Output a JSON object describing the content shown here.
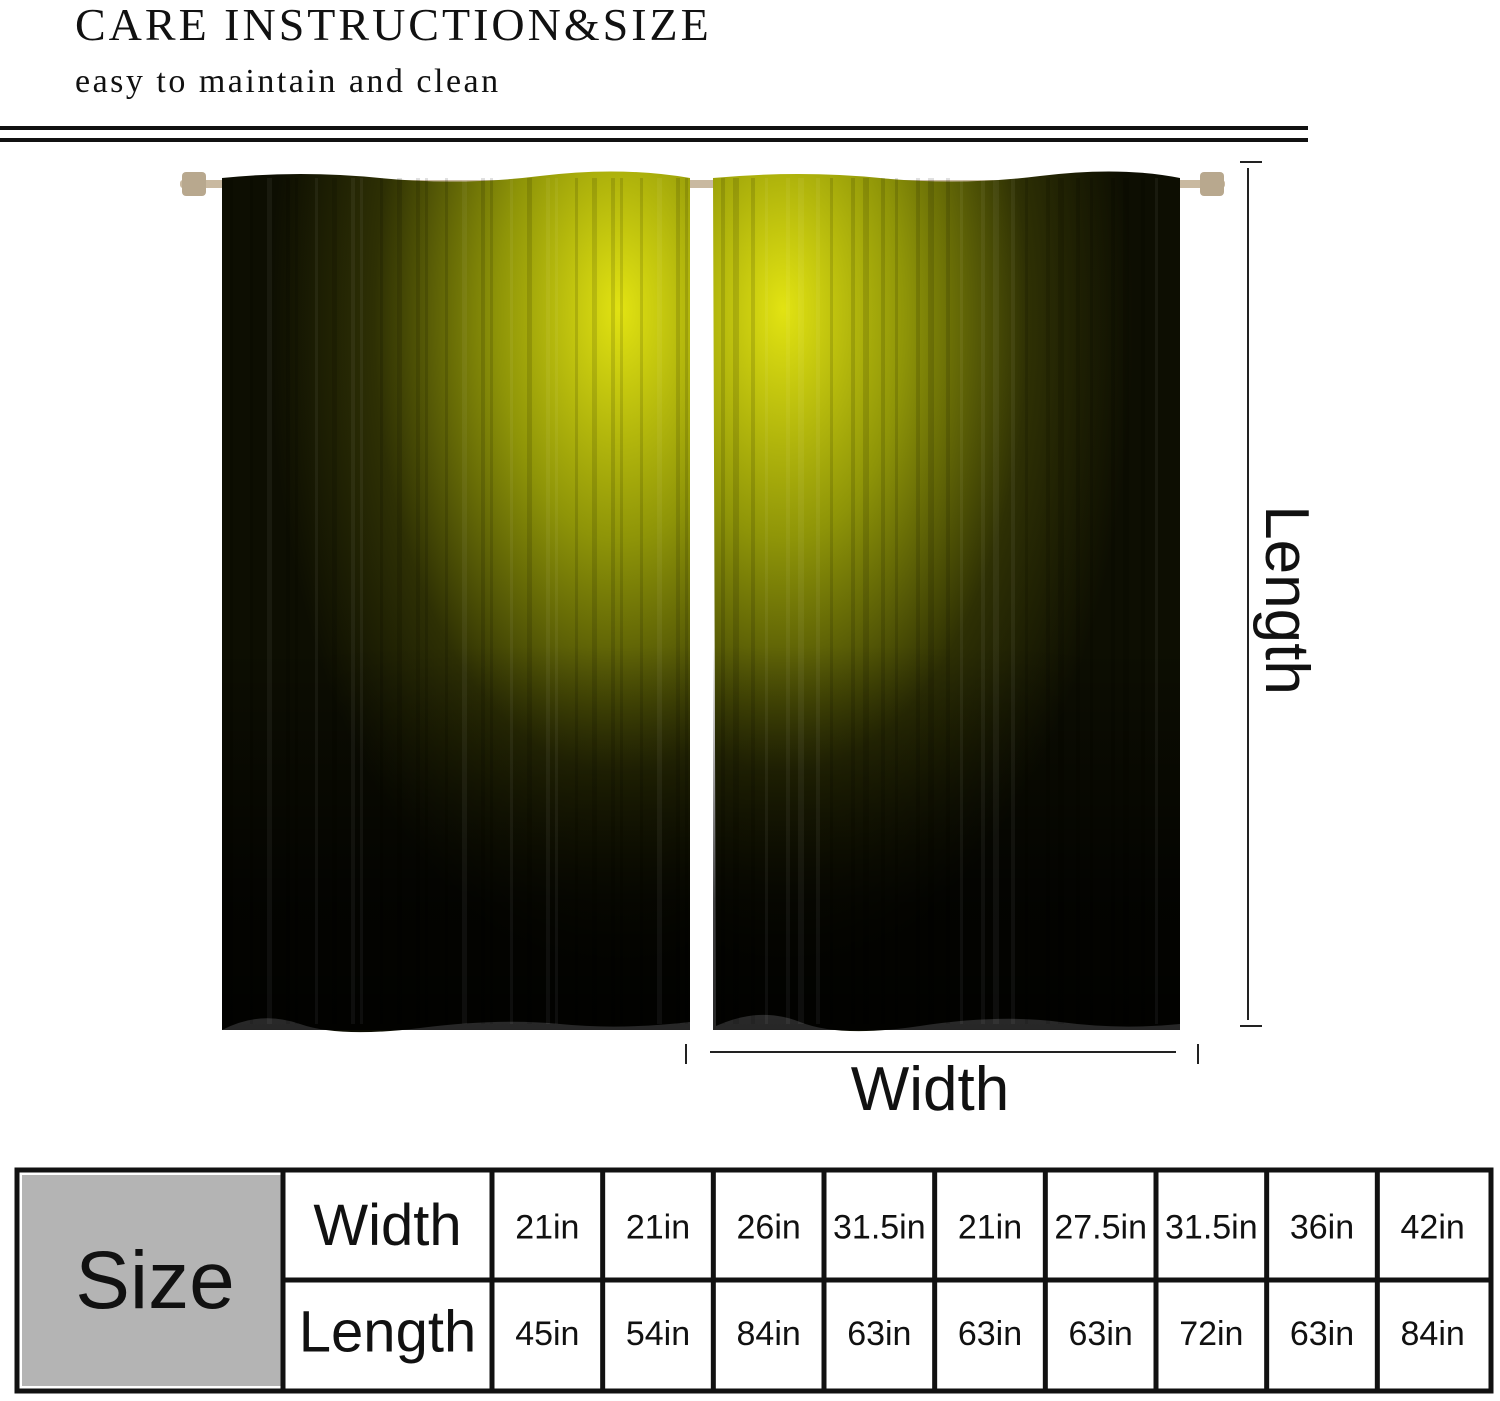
{
  "header": {
    "title": "CARE INSTRUCTION&SIZE",
    "subtitle": "easy to maintain and clean"
  },
  "diagram": {
    "length_label": "Length",
    "width_label": "Width"
  },
  "table": {
    "size_label": "Size",
    "rows": [
      {
        "label": "Width",
        "cells": [
          "21in",
          "21in",
          "26in",
          "31.5in",
          "21in",
          "27.5in",
          "31.5in",
          "36in",
          "42in"
        ]
      },
      {
        "label": "Length",
        "cells": [
          "45in",
          "54in",
          "84in",
          "63in",
          "63in",
          "63in",
          "72in",
          "63in",
          "84in"
        ]
      }
    ]
  }
}
